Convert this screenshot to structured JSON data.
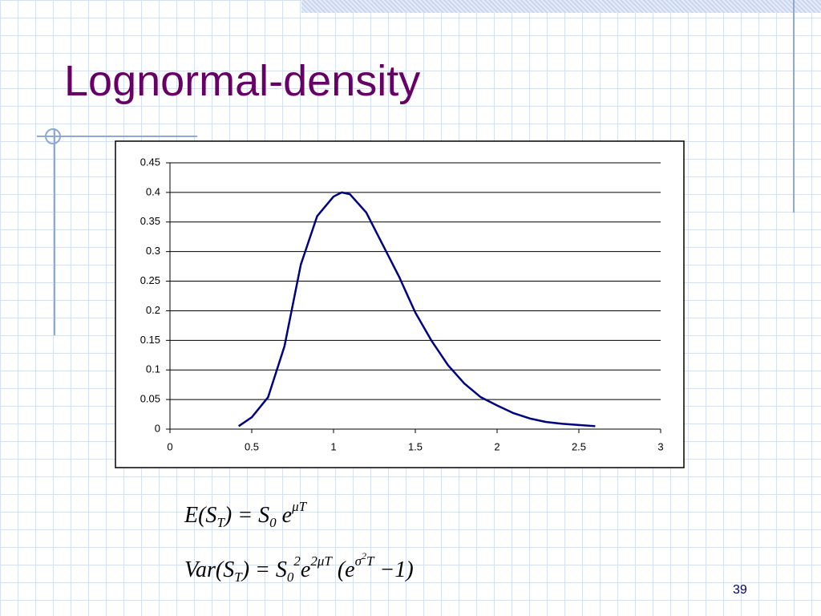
{
  "slide": {
    "title": "Lognormal-density",
    "page_number": "39",
    "formulas": [
      [
        {
          "text": "E",
          "style": "normal"
        },
        {
          "text": "(S",
          "style": "normal"
        },
        {
          "text": "T",
          "style": "sub"
        },
        {
          "text": ") = S",
          "style": "normal"
        },
        {
          "text": "0",
          "style": "sub"
        },
        {
          "text": " e",
          "style": "normal"
        },
        {
          "text": "μT",
          "style": "sup"
        }
      ],
      [
        {
          "text": "Var(S",
          "style": "normal"
        },
        {
          "text": "T",
          "style": "sub"
        },
        {
          "text": ") = S",
          "style": "normal"
        },
        {
          "text": "0",
          "style": "sub"
        },
        {
          "text": "2",
          "style": "sup"
        },
        {
          "text": "e",
          "style": "normal"
        },
        {
          "text": "2μT",
          "style": "sup"
        },
        {
          "text": " (e",
          "style": "normal"
        },
        {
          "text": "σ",
          "style": "sup"
        },
        {
          "text": "2",
          "style": "supsup"
        },
        {
          "text": "T",
          "style": "sup"
        },
        {
          "text": " −1)",
          "style": "normal"
        }
      ]
    ]
  },
  "chart_data": {
    "type": "line",
    "x": [
      0.42,
      0.5,
      0.6,
      0.7,
      0.8,
      0.9,
      1.0,
      1.05,
      1.1,
      1.2,
      1.3,
      1.4,
      1.5,
      1.6,
      1.7,
      1.8,
      1.9,
      2.0,
      2.1,
      2.2,
      2.3,
      2.4,
      2.5,
      2.6
    ],
    "series": [
      {
        "color": "#000080",
        "values": [
          0.005,
          0.02,
          0.054,
          0.14,
          0.278,
          0.36,
          0.393,
          0.4,
          0.397,
          0.366,
          0.312,
          0.258,
          0.197,
          0.149,
          0.108,
          0.077,
          0.054,
          0.04,
          0.027,
          0.018,
          0.012,
          0.009,
          0.007,
          0.005
        ]
      }
    ],
    "xlim": [
      0,
      3
    ],
    "xticks": [
      0,
      0.5,
      1,
      1.5,
      2,
      2.5,
      3
    ],
    "ylim": [
      0,
      0.45
    ],
    "yticks": [
      0,
      0.05,
      0.1,
      0.15,
      0.2,
      0.25,
      0.3,
      0.35,
      0.4,
      0.45
    ],
    "grid": true
  }
}
